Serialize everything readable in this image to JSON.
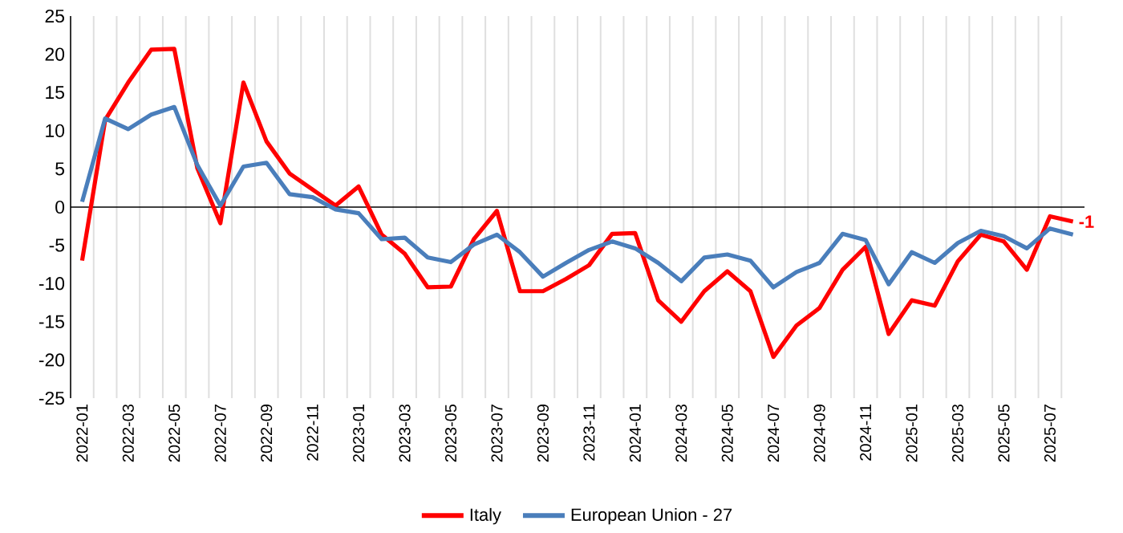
{
  "chart_data": {
    "type": "line",
    "categories": [
      "2022-01",
      null,
      "2022-03",
      null,
      "2022-05",
      null,
      "2022-07",
      null,
      "2022-09",
      null,
      "2022-11",
      null,
      "2023-01",
      null,
      "2023-03",
      null,
      "2023-05",
      null,
      "2023-07",
      null,
      "2023-09",
      null,
      "2023-11",
      null,
      "2024-01",
      null,
      "2024-03",
      null,
      "2024-05",
      null,
      "2024-07",
      null,
      "2024-09",
      null,
      "2024-11",
      null,
      "2025-01",
      null,
      "2025-03",
      null,
      "2025-05",
      null,
      "2025-07",
      null
    ],
    "series": [
      {
        "name": "Italy",
        "color": "#ff0000",
        "values": [
          -7.0,
          11.4,
          16.3,
          20.6,
          20.7,
          5.1,
          -2.1,
          16.3,
          8.6,
          4.4,
          2.3,
          0.2,
          2.7,
          -3.6,
          -6.1,
          -10.5,
          -10.4,
          -4.2,
          -0.5,
          -11.0,
          -11.0,
          -9.4,
          -7.6,
          -3.5,
          -3.4,
          -12.2,
          -15.0,
          -11.0,
          -8.4,
          -11.0,
          -19.6,
          -15.5,
          -13.2,
          -8.2,
          -5.2,
          -16.6,
          -12.2,
          -12.9,
          -7.1,
          -3.6,
          -4.5,
          -8.2,
          -1.2,
          -1.9
        ]
      },
      {
        "name": "European Union - 27",
        "color": "#4a7ebb",
        "values": [
          0.7,
          11.6,
          10.2,
          12.1,
          13.1,
          5.5,
          0.2,
          5.3,
          5.8,
          1.7,
          1.3,
          -0.3,
          -0.8,
          -4.2,
          -4.0,
          -6.6,
          -7.2,
          -4.9,
          -3.6,
          -5.9,
          -9.1,
          -7.3,
          -5.6,
          -4.5,
          -5.4,
          -7.3,
          -9.7,
          -6.6,
          -6.2,
          -7.0,
          -10.5,
          -8.5,
          -7.3,
          -3.5,
          -4.3,
          -10.1,
          -5.9,
          -7.3,
          -4.7,
          -3.1,
          -3.8,
          -5.4,
          -2.8,
          -3.6
        ]
      }
    ],
    "ylim": [
      -25,
      25
    ],
    "yticks": [
      -25,
      -20,
      -15,
      -10,
      -5,
      0,
      5,
      10,
      15,
      20,
      25
    ],
    "grid": "x",
    "legend": "bottom",
    "marker": "none",
    "line_style": "solid",
    "annotations": [
      "-1"
    ]
  }
}
